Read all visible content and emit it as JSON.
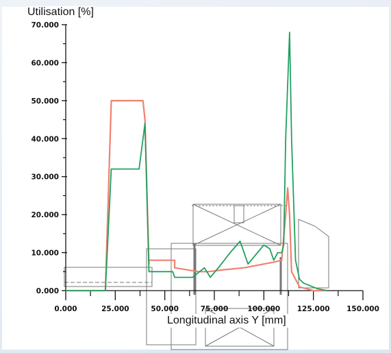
{
  "chart_data": {
    "type": "line",
    "ylabel": "Utilisation [%]",
    "xlabel": "Longitudinal axis Y [mm]",
    "xlim": [
      0,
      150
    ],
    "ylim": [
      0,
      70
    ],
    "x_ticks": [
      "0.000",
      "25.000",
      "50.000",
      "75.000",
      "100.000",
      "125.000",
      "150.000"
    ],
    "y_ticks": [
      "0.000",
      "10.000",
      "20.000",
      "30.000",
      "40.000",
      "50.000",
      "60.000",
      "70.000"
    ],
    "grid": false,
    "series": [
      {
        "color": "#f08070",
        "x": [
          0,
          20,
          23,
          24,
          39,
          40,
          42,
          42,
          55,
          55,
          67,
          72,
          80,
          90,
          100,
          105,
          109,
          111,
          112,
          113,
          114,
          116,
          118,
          125,
          132
        ],
        "y": [
          0,
          0,
          50,
          50,
          50,
          45,
          7,
          8,
          8,
          6,
          5,
          5,
          5.5,
          6,
          7,
          7.5,
          8,
          20,
          27,
          20,
          5,
          3,
          1,
          0,
          0
        ]
      },
      {
        "color": "#20a060",
        "x": [
          0,
          20,
          23,
          24,
          34,
          37,
          40,
          42,
          43,
          54,
          55,
          64,
          70,
          73,
          77,
          80,
          83,
          88,
          92,
          100,
          103,
          105,
          107,
          109,
          110,
          111,
          113,
          114,
          116,
          118,
          120,
          127,
          132
        ],
        "y": [
          0,
          0,
          32,
          32,
          32,
          32,
          44,
          5,
          5,
          5,
          3.5,
          3.5,
          6,
          3.5,
          6,
          8,
          10,
          13,
          7,
          12,
          11,
          8,
          10,
          10,
          12,
          40,
          68,
          40,
          8,
          3,
          2,
          0.5,
          0
        ]
      }
    ]
  }
}
